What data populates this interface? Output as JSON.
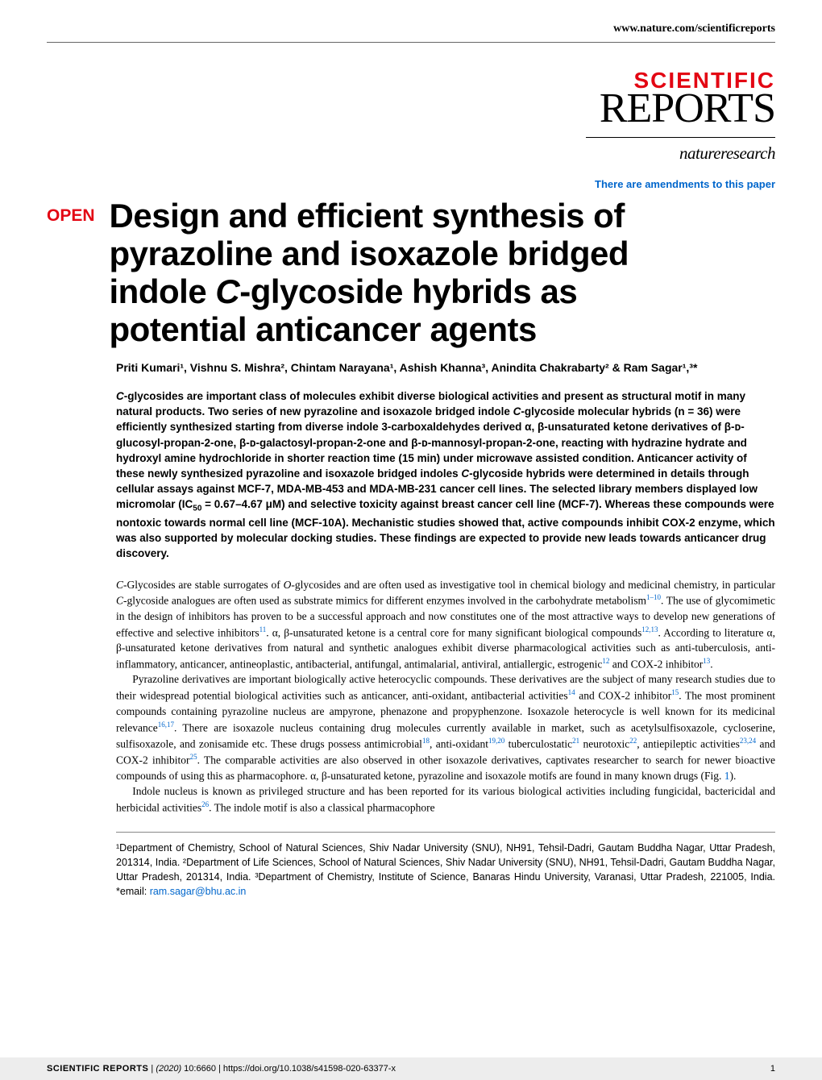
{
  "header": {
    "url": "www.nature.com/scientificreports",
    "logo_scientific": "SCIENTIFIC",
    "logo_reports": "REPORTS",
    "logo_nature": "natureresearch",
    "amendments": "There are amendments to this paper",
    "open_badge": "OPEN"
  },
  "title": {
    "line1": "Design and efficient synthesis of",
    "line2": "pyrazoline and isoxazole bridged",
    "line3_pre": "indole ",
    "line3_ital": "C",
    "line3_post": "-glycoside hybrids as",
    "line4": "potential anticancer agents"
  },
  "authors": "Priti Kumari¹, Vishnu S. Mishra², Chintam Narayana¹, Ashish Khanna³, Anindita Chakrabarty² & Ram Sagar¹,³*",
  "abstract": {
    "t1_pre": "C",
    "t1": "-glycosides are important class of molecules exhibit diverse biological activities and present as structural motif in many natural products. Two series of new pyrazoline and isoxazole bridged indole ",
    "t2_ital": "C",
    "t2": "-glycoside molecular hybrids (n = 36) were efficiently synthesized starting from diverse indole 3-carboxaldehydes derived α, β-unsaturated ketone derivatives of β-ᴅ-glucosyl-propan-2-one, β-ᴅ-galactosyl-propan-2-one and β-ᴅ-mannosyl-propan-2-one, reacting with hydrazine hydrate and hydroxyl amine hydrochloride in shorter reaction time (15 min) under microwave assisted condition. Anticancer activity of these newly synthesized pyrazoline and isoxazole bridged indoles ",
    "t3_ital": "C",
    "t3": "-glycoside hybrids were determined in details through cellular assays against MCF-7, MDA-MB-453 and MDA-MB-231 cancer cell lines. The selected library members displayed low micromolar (IC",
    "t3_sub": "50",
    "t4": " = 0.67–4.67 μM) and selective toxicity against breast cancer cell line (MCF-7). Whereas these compounds were nontoxic towards normal cell line (MCF-10A). Mechanistic studies showed that, active compounds inhibit COX-2 enzyme, which was also supported by molecular docking studies. These findings are expected to provide new leads towards anticancer drug discovery."
  },
  "body": {
    "p1_pre": "C",
    "p1a": "-Glycosides are stable surrogates of ",
    "p1_ital2": "O",
    "p1b": "-glycosides and are often used as investigative tool in chemical biology and medicinal chemistry, in particular ",
    "p1_ital3": "C",
    "p1c": "-glycoside analogues are often used as substrate mimics for different enzymes involved in the carbohydrate metabolism",
    "p1_ref1": "1–10",
    "p1d": ". The use of glycomimetic in the design of inhibitors has proven to be a successful approach and now constitutes one of the most attractive ways to develop new generations of effective and selective inhibitors",
    "p1_ref2": "11",
    "p1e": ". α, β-unsaturated ketone is a central core for many significant biological compounds",
    "p1_ref3": "12,13",
    "p1f": ". According to literature α, β-unsaturated ketone derivatives from natural and synthetic analogues exhibit diverse pharmacological activities such as anti-tuberculosis, anti-inflammatory, anticancer, antineoplastic, antibacterial, antifungal, antimalarial, antiviral, antiallergic, estrogenic",
    "p1_ref4": "12",
    "p1g": " and COX-2 inhibitor",
    "p1_ref5": "13",
    "p1h": ".",
    "p2a": "Pyrazoline derivatives are important biologically active heterocyclic compounds. These derivatives are the subject of many research studies due to their widespread potential biological activities such as anticancer, anti-oxidant, antibacterial activities",
    "p2_ref1": "14",
    "p2b": " and COX-2 inhibitor",
    "p2_ref2": "15",
    "p2c": ". The most prominent compounds containing pyrazoline nucleus are ampyrone, phenazone and propyphenzone. Isoxazole heterocycle is well known for its medicinal relevance",
    "p2_ref3": "16,17",
    "p2d": ". There are isoxazole nucleus containing drug molecules currently available in market, such as acetylsulfisoxazole, cycloserine, sulfisoxazole, and zonisamide etc. These drugs possess antimicrobial",
    "p2_ref4": "18",
    "p2e": ", anti-oxidant",
    "p2_ref5": "19,20",
    "p2f": " tuberculostatic",
    "p2_ref6": "21",
    "p2g": " neurotoxic",
    "p2_ref7": "22",
    "p2h": ", antiepileptic activities",
    "p2_ref8": "23,24",
    "p2i": " and COX-2 inhibitor",
    "p2_ref9": "25",
    "p2j": ". The comparable activities are also observed in other isoxazole derivatives, captivates researcher to search for newer bioactive compounds of using this as pharmacophore. α, β-unsaturated ketone, pyrazoline and isoxazole motifs are found in many known drugs (Fig. ",
    "p2_fig": "1",
    "p2k": ").",
    "p3a": "Indole nucleus is known as privileged structure and has been reported for its various biological activities including fungicidal, bactericidal and herbicidal activities",
    "p3_ref1": "26",
    "p3b": ". The indole motif is also a classical pharmacophore"
  },
  "affiliations": {
    "text1": "¹Department of Chemistry, School of Natural Sciences, Shiv Nadar University (SNU), NH91, Tehsil-Dadri, Gautam Buddha Nagar, Uttar Pradesh, 201314, India. ²Department of Life Sciences, School of Natural Sciences, Shiv Nadar University (SNU), NH91, Tehsil-Dadri, Gautam Buddha Nagar, Uttar Pradesh, 201314, India. ³Department of Chemistry, Institute of Science, Banaras Hindu University, Varanasi, Uttar Pradesh, 221005, India. *email: ",
    "email": "ram.sagar@bhu.ac.in"
  },
  "footer": {
    "journal": "SCIENTIFIC REPORTS",
    "sep": " | ",
    "year": "(2020)",
    "vol": " 10:6660 ",
    "doi": "| https://doi.org/10.1038/s41598-020-63377-x",
    "page": "1"
  },
  "colors": {
    "brand_red": "#e30613",
    "link_blue": "#0066cc",
    "footer_bg": "#ededed",
    "rule_gray": "#666666"
  }
}
